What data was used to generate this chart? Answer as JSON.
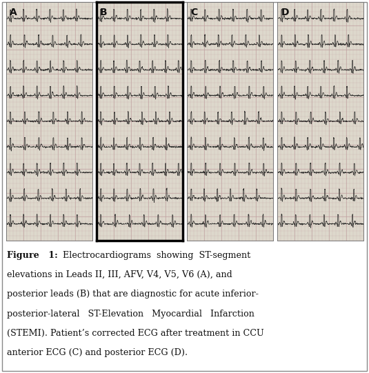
{
  "background_color": "#ffffff",
  "figure_width": 5.35,
  "figure_height": 5.41,
  "panel_labels": [
    "A",
    "B",
    "C",
    "D"
  ],
  "panel_B_border_color": "#000000",
  "panel_B_border_linewidth": 2.5,
  "ecg_bg_color": "#ddd8cc",
  "ecg_grid_color": "#c0a0a0",
  "caption_fontsize": 9.2,
  "caption_font": "serif",
  "caption_color": "#111111",
  "outer_border_color": "#888888",
  "outer_border_linewidth": 1.0,
  "label_fontsize": 10,
  "label_color": "#111111",
  "caption_lines": [
    [
      "bold",
      "Figure   1:",
      "normal",
      "  Electrocardiograms  showing  ST-segment"
    ],
    [
      "normal",
      "elevations in Leads II, III, AFV, V4, V5, V6 (A), and",
      "",
      ""
    ],
    [
      "normal",
      "posterior leads (B) that are diagnostic for acute inferior-",
      "",
      ""
    ],
    [
      "normal",
      "posterior-lateral   ST-Elevation   Myocardial   Infarction",
      "",
      ""
    ],
    [
      "normal",
      "(STEMI). Patient’s corrected ECG after treatment in CCU",
      "",
      ""
    ],
    [
      "normal",
      "anterior ECG (C) and posterior ECG (D).",
      "",
      ""
    ]
  ]
}
